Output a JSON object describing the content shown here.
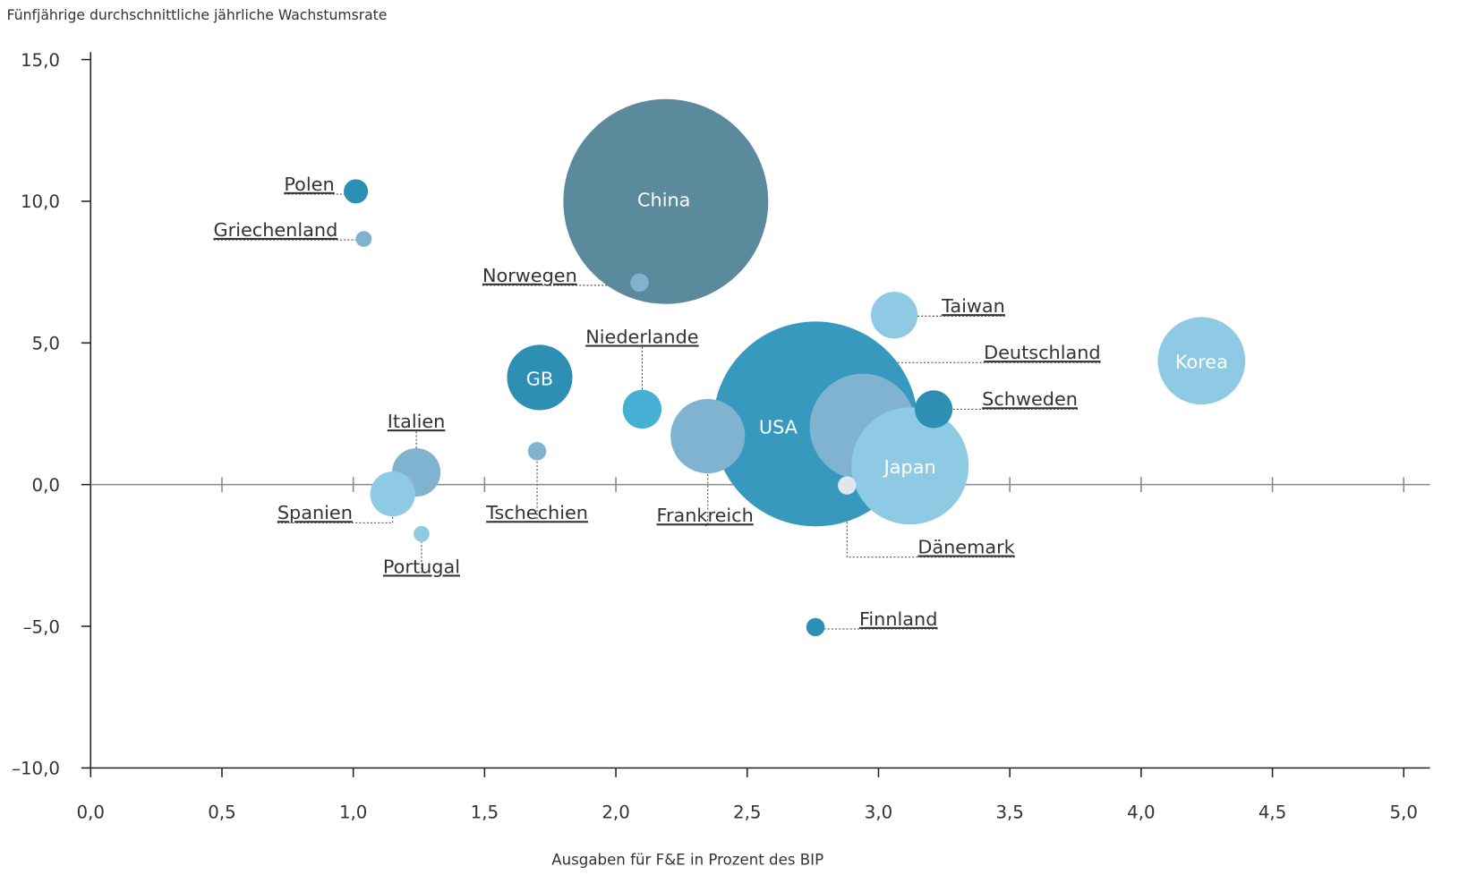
{
  "chart_data": {
    "type": "bubble",
    "y_label": "Fünfjährige durchschnittliche jährliche Wachstumsrate",
    "x_label": "Ausgaben für F&E in Prozent des BIP",
    "xlim": [
      0,
      5.1
    ],
    "ylim": [
      -10,
      15
    ],
    "xticks": [
      {
        "value": 0,
        "label": "0,0"
      },
      {
        "value": 0.5,
        "label": "0,5"
      },
      {
        "value": 1,
        "label": "1,0"
      },
      {
        "value": 1.5,
        "label": "1,5"
      },
      {
        "value": 2,
        "label": "2,0"
      },
      {
        "value": 2.5,
        "label": "2,5"
      },
      {
        "value": 3,
        "label": "3,0"
      },
      {
        "value": 3.5,
        "label": "3,5"
      },
      {
        "value": 4,
        "label": "4,0"
      },
      {
        "value": 4.5,
        "label": "4,5"
      },
      {
        "value": 5,
        "label": "5,0"
      }
    ],
    "yticks": [
      {
        "value": -10,
        "label": "–10,0"
      },
      {
        "value": -5,
        "label": "–5,0"
      },
      {
        "value": 0,
        "label": "0,0"
      },
      {
        "value": 5,
        "label": "5,0"
      },
      {
        "value": 10,
        "label": "10,0"
      },
      {
        "value": 15,
        "label": "15,0"
      }
    ],
    "points": [
      {
        "name": "China",
        "x": 2.19,
        "y": 9.99,
        "size": 500,
        "color": "#5a8a9b"
      },
      {
        "name": "USA",
        "x": 2.76,
        "y": 2.14,
        "size": 500,
        "color": "#3899bf"
      },
      {
        "name": "Deutschland",
        "x": 2.94,
        "y": 2.04,
        "size": 134,
        "color": "#7fb3d0"
      },
      {
        "name": "Japan",
        "x": 3.12,
        "y": 0.66,
        "size": 164,
        "color": "#8ecae3"
      },
      {
        "name": "Korea",
        "x": 4.23,
        "y": 4.37,
        "size": 91,
        "color": "#8ecae3"
      },
      {
        "name": "Frankreich",
        "x": 2.35,
        "y": 1.71,
        "size": 66,
        "color": "#7fb3d0"
      },
      {
        "name": "GB",
        "x": 1.71,
        "y": 3.78,
        "size": 51,
        "color": "#2e8fb5"
      },
      {
        "name": "Italien",
        "x": 1.24,
        "y": 0.43,
        "size": 28,
        "color": "#7fb3d0"
      },
      {
        "name": "Spanien",
        "x": 1.15,
        "y": -0.33,
        "size": 24,
        "color": "#8ecae3"
      },
      {
        "name": "Taiwan",
        "x": 3.06,
        "y": 5.98,
        "size": 26,
        "color": "#8ecae3"
      },
      {
        "name": "Schweden",
        "x": 3.21,
        "y": 2.66,
        "size": 17,
        "color": "#2e8fb5"
      },
      {
        "name": "Niederlande",
        "x": 2.1,
        "y": 2.66,
        "size": 18,
        "color": "#45b0d3"
      },
      {
        "name": "Polen",
        "x": 1.01,
        "y": 10.35,
        "size": 7,
        "color": "#2e8fb5"
      },
      {
        "name": "Griechenland",
        "x": 1.04,
        "y": 8.67,
        "size": 3,
        "color": "#7fb3d0"
      },
      {
        "name": "Norwegen",
        "x": 2.09,
        "y": 7.13,
        "size": 4,
        "color": "#7fb3d0"
      },
      {
        "name": "Tschechien",
        "x": 1.7,
        "y": 1.18,
        "size": 4,
        "color": "#7fb3d0"
      },
      {
        "name": "Portugal",
        "x": 1.26,
        "y": -1.74,
        "size": 3,
        "color": "#8ecae3"
      },
      {
        "name": "Dänemark",
        "x": 2.88,
        "y": -0.03,
        "size": 4,
        "color": "#dde8ee"
      },
      {
        "name": "Finnland",
        "x": 2.76,
        "y": -5.03,
        "size": 4,
        "color": "#2e8fb5"
      }
    ]
  }
}
